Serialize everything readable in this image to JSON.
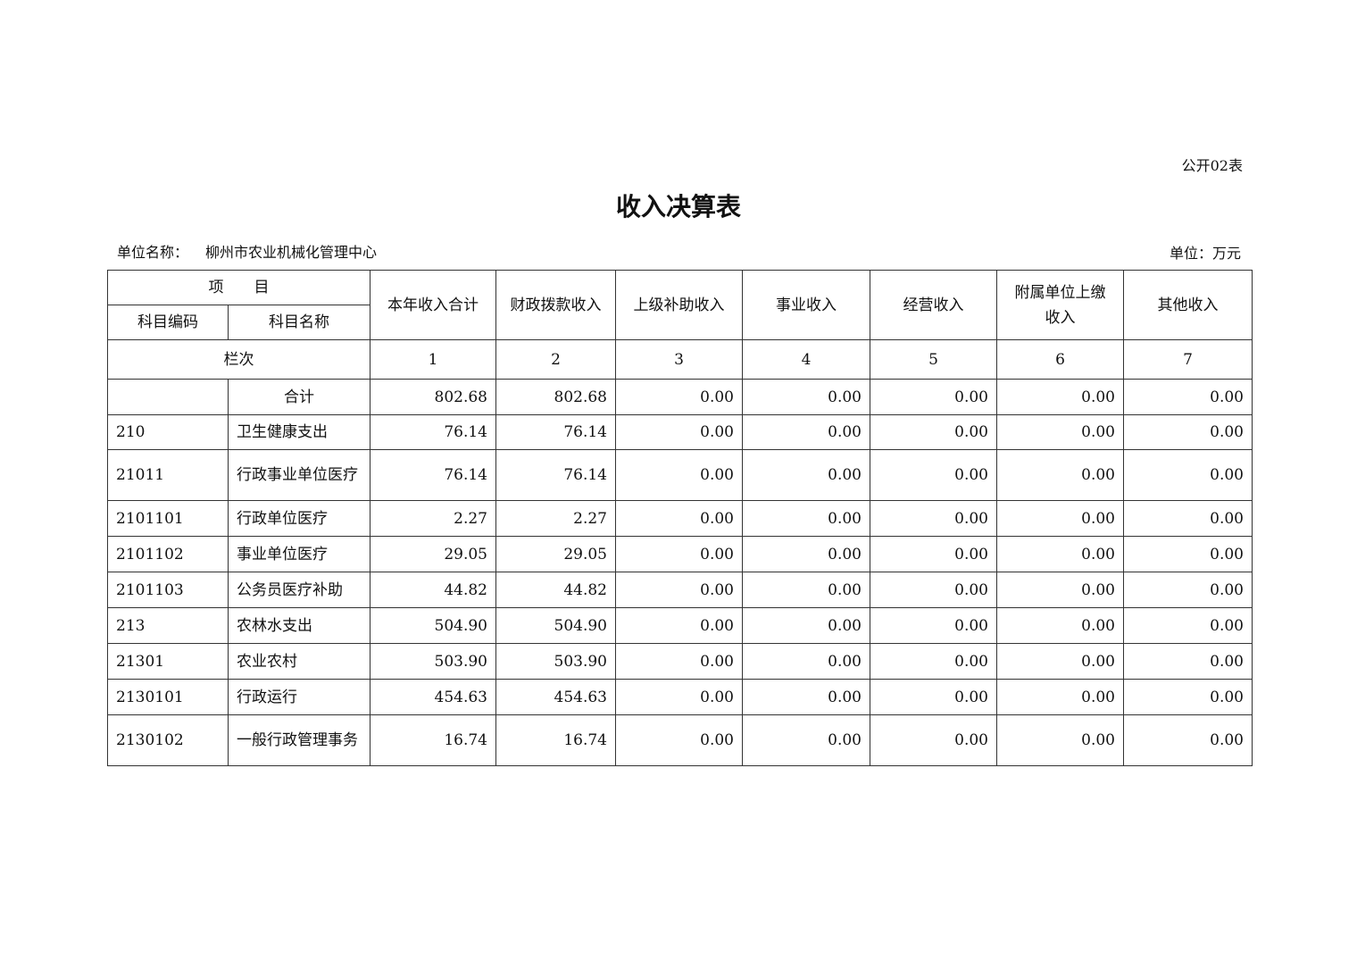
{
  "form_no": "公开02表",
  "title": "收入决算表",
  "unit_label": "单位名称：",
  "unit_name": "柳州市农业机械化管理中心",
  "currency": "单位：万元",
  "header": {
    "item": "项　　目",
    "code": "科目编码",
    "name": "科目名称",
    "columns": [
      "本年收入合计",
      "财政拨款收入",
      "上级补助收入",
      "事业收入",
      "经营收入",
      "附属单位上缴收入",
      "其他收入"
    ],
    "col_index_label": "栏次",
    "col_index": [
      "1",
      "2",
      "3",
      "4",
      "5",
      "6",
      "7"
    ]
  },
  "rows": [
    {
      "code": "",
      "name": "合计",
      "values": [
        "802.68",
        "802.68",
        "0.00",
        "0.00",
        "0.00",
        "0.00",
        "0.00"
      ]
    },
    {
      "code": "210",
      "name": "卫生健康支出",
      "values": [
        "76.14",
        "76.14",
        "0.00",
        "0.00",
        "0.00",
        "0.00",
        "0.00"
      ]
    },
    {
      "code": "21011",
      "name": "行政事业单位医疗",
      "values": [
        "76.14",
        "76.14",
        "0.00",
        "0.00",
        "0.00",
        "0.00",
        "0.00"
      ]
    },
    {
      "code": "2101101",
      "name": "行政单位医疗",
      "values": [
        "2.27",
        "2.27",
        "0.00",
        "0.00",
        "0.00",
        "0.00",
        "0.00"
      ]
    },
    {
      "code": "2101102",
      "name": "事业单位医疗",
      "values": [
        "29.05",
        "29.05",
        "0.00",
        "0.00",
        "0.00",
        "0.00",
        "0.00"
      ]
    },
    {
      "code": "2101103",
      "name": "公务员医疗补助",
      "values": [
        "44.82",
        "44.82",
        "0.00",
        "0.00",
        "0.00",
        "0.00",
        "0.00"
      ]
    },
    {
      "code": "213",
      "name": "农林水支出",
      "values": [
        "504.90",
        "504.90",
        "0.00",
        "0.00",
        "0.00",
        "0.00",
        "0.00"
      ]
    },
    {
      "code": "21301",
      "name": "农业农村",
      "values": [
        "503.90",
        "503.90",
        "0.00",
        "0.00",
        "0.00",
        "0.00",
        "0.00"
      ]
    },
    {
      "code": "2130101",
      "name": "行政运行",
      "values": [
        "454.63",
        "454.63",
        "0.00",
        "0.00",
        "0.00",
        "0.00",
        "0.00"
      ]
    },
    {
      "code": "2130102",
      "name": "一般行政管理事务",
      "values": [
        "16.74",
        "16.74",
        "0.00",
        "0.00",
        "0.00",
        "0.00",
        "0.00"
      ]
    }
  ]
}
